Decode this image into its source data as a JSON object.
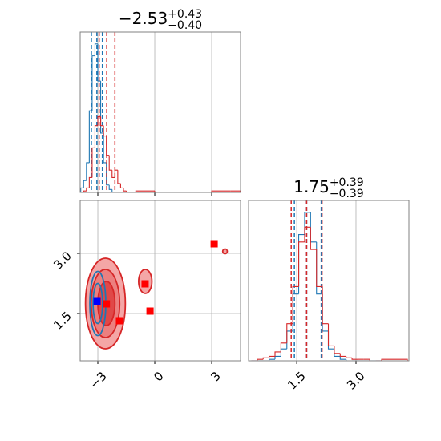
{
  "chart_data": [
    {
      "type": "histogram",
      "title": "−2.53",
      "title_sup": "+0.43",
      "title_sub": "−0.40",
      "bins": [
        -3.9,
        -3.75,
        -3.6,
        -3.45,
        -3.3,
        -3.15,
        -3.0,
        -2.85,
        -2.7,
        -2.55,
        -2.4,
        -2.25,
        -2.1,
        -1.95,
        -1.8,
        -1.65,
        -1.5,
        -1.0,
        0,
        1,
        2,
        3,
        4,
        4.5
      ],
      "series": [
        {
          "color": "#1f77b4",
          "values": [
            3,
            8,
            20,
            55,
            92,
            100,
            75,
            40,
            20,
            5,
            2,
            0,
            0,
            0,
            0,
            0,
            0,
            0,
            0,
            0,
            0,
            0,
            0
          ],
          "quantiles": [
            -3.34,
            -3.05,
            -2.76
          ]
        },
        {
          "color": "#d62728",
          "values": [
            0,
            1,
            3,
            10,
            30,
            45,
            51,
            45,
            38,
            25,
            15,
            10,
            15,
            6,
            3,
            1,
            0,
            1,
            0,
            0,
            0,
            1,
            1
          ],
          "quantiles": [
            -2.93,
            -2.53,
            -2.1
          ]
        }
      ],
      "xlim": [
        -3.93,
        4.52
      ],
      "ylim": [
        0,
        108
      ],
      "xticks": [
        -3,
        0,
        3
      ],
      "xticklabels": false,
      "grid": true
    },
    {
      "type": "contour",
      "xlim": [
        -3.93,
        4.52
      ],
      "ylim": [
        0.32,
        4.32
      ],
      "xticks": [
        {
          "value": -3,
          "label": "−3"
        },
        0,
        3
      ],
      "yticks": [
        1.5,
        {
          "value": 3,
          "label": "3.0"
        }
      ],
      "grid": true,
      "contours": [
        {
          "color": "#d62728",
          "fill": "#f4a6a6",
          "cx": -2.6,
          "cy": 1.75,
          "rx": 1.05,
          "ry": 1.13
        },
        {
          "color": "#d62728",
          "fill": "#ec7f7f",
          "cx": -2.6,
          "cy": 1.75,
          "rx": 0.75,
          "ry": 0.85
        },
        {
          "color": "#d62728",
          "fill": "#e04848",
          "cx": -2.55,
          "cy": 1.75,
          "rx": 0.45,
          "ry": 0.55
        },
        {
          "color": "#d62728",
          "fill": "#f4a6a6",
          "cx": -0.5,
          "cy": 2.3,
          "rx": 0.35,
          "ry": 0.3
        },
        {
          "color": "#d62728",
          "fill": "#f4a6a6",
          "cx": 3.7,
          "cy": 3.05,
          "rx": 0.12,
          "ry": 0.06
        },
        {
          "color": "#1f77b4",
          "fill": "none",
          "cx": -3.0,
          "cy": 1.75,
          "rx": 0.42,
          "ry": 0.8
        },
        {
          "color": "#1f77b4",
          "fill": "none",
          "cx": -3.0,
          "cy": 1.75,
          "rx": 0.25,
          "ry": 0.5
        }
      ],
      "markers": [
        {
          "color": "#ff0000",
          "x": [
            -2.55,
            -1.86,
            -0.51,
            -0.25,
            3.13
          ],
          "y": [
            1.74,
            1.32,
            2.24,
            1.56,
            3.24
          ]
        },
        {
          "color": "#0000ff",
          "x": [
            -3.04
          ],
          "y": [
            1.8
          ]
        }
      ]
    },
    {
      "type": "histogram",
      "title": "1.75",
      "title_sup": "+0.39",
      "title_sub": "−0.39",
      "bins": [
        0.35,
        0.5,
        0.65,
        0.8,
        0.95,
        1.1,
        1.25,
        1.4,
        1.55,
        1.7,
        1.85,
        2.0,
        2.15,
        2.3,
        2.45,
        2.6,
        2.75,
        2.9,
        3.05,
        3.2,
        3.35,
        3.5,
        3.65,
        4.3
      ],
      "series": [
        {
          "color": "#1f77b4",
          "values": [
            0,
            0,
            0,
            1,
            3,
            8,
            20,
            45,
            85,
            100,
            80,
            45,
            20,
            8,
            3,
            1,
            0,
            0,
            0,
            0,
            0,
            0,
            0
          ],
          "quantiles": [
            1.44,
            1.75,
            2.12
          ]
        },
        {
          "color": "#d62728",
          "values": [
            0,
            1,
            2,
            3,
            6,
            12,
            25,
            50,
            80,
            90,
            75,
            50,
            25,
            10,
            5,
            3,
            2,
            1,
            1,
            1,
            0,
            0,
            1
          ],
          "quantiles": [
            1.36,
            1.75,
            2.14
          ]
        }
      ],
      "xlim": [
        0.28,
        4.34
      ],
      "ylim": [
        0,
        108
      ],
      "xticks": [
        1.5,
        {
          "value": 3,
          "label": "3.0"
        }
      ],
      "xticklabels": true,
      "grid": true
    }
  ]
}
